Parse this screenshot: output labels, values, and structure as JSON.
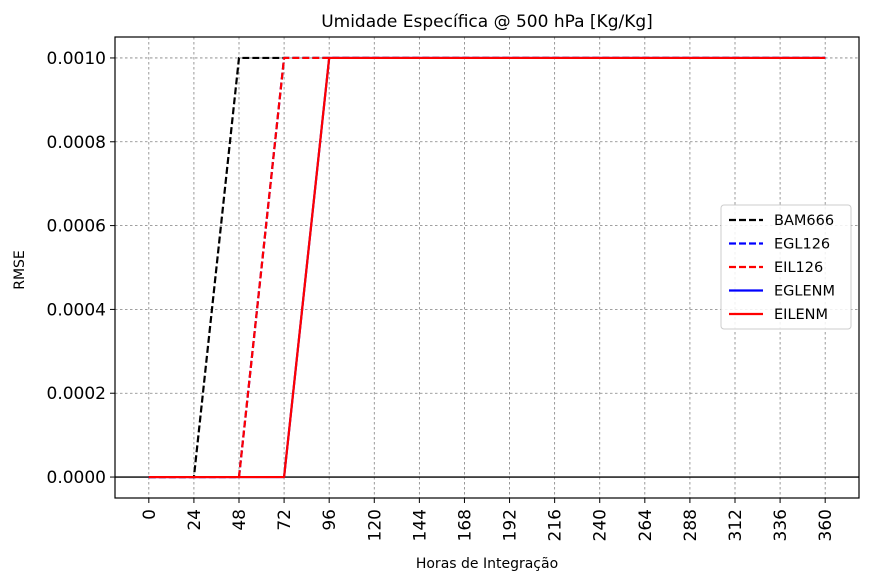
{
  "chart_data": {
    "type": "line",
    "title": "Umidade Específica @ 500 hPa [Kg/Kg]",
    "xlabel": "Horas de Integração",
    "ylabel": "RMSE",
    "xlim": [
      -18,
      378
    ],
    "ylim": [
      -5e-05,
      0.00105
    ],
    "xticks": [
      0,
      24,
      48,
      72,
      96,
      120,
      144,
      168,
      192,
      216,
      240,
      264,
      288,
      312,
      336,
      360
    ],
    "yticks": [
      0.0,
      0.0002,
      0.0004,
      0.0006,
      0.0008,
      0.001
    ],
    "ytick_labels": [
      "0.0000",
      "0.0002",
      "0.0004",
      "0.0006",
      "0.0008",
      "0.0010"
    ],
    "grid": true,
    "grid_color": "#808080",
    "zero_line": true,
    "legend_position": "center-right",
    "x": [
      0,
      24,
      48,
      72,
      96,
      120,
      144,
      168,
      192,
      216,
      240,
      264,
      288,
      312,
      336,
      360
    ],
    "series": [
      {
        "name": "BAM666",
        "color": "#000000",
        "style": "dashed",
        "values": [
          0,
          0,
          0.001,
          0.001,
          0.001,
          0.001,
          0.001,
          0.001,
          0.001,
          0.001,
          0.001,
          0.001,
          0.001,
          0.001,
          0.001,
          0.001
        ]
      },
      {
        "name": "EGL126",
        "color": "#0000ff",
        "style": "dashed",
        "values": [
          0,
          0,
          0,
          0.001,
          0.001,
          0.001,
          0.001,
          0.001,
          0.001,
          0.001,
          0.001,
          0.001,
          0.001,
          0.001,
          0.001,
          0.001
        ]
      },
      {
        "name": "EIL126",
        "color": "#ff0000",
        "style": "dashed",
        "values": [
          0,
          0,
          0,
          0.001,
          0.001,
          0.001,
          0.001,
          0.001,
          0.001,
          0.001,
          0.001,
          0.001,
          0.001,
          0.001,
          0.001,
          0.001
        ]
      },
      {
        "name": "EGLENM",
        "color": "#0000ff",
        "style": "solid",
        "values": [
          0,
          0,
          0,
          0,
          0.001,
          0.001,
          0.001,
          0.001,
          0.001,
          0.001,
          0.001,
          0.001,
          0.001,
          0.001,
          0.001,
          0.001
        ]
      },
      {
        "name": "EILENM",
        "color": "#ff0000",
        "style": "solid",
        "values": [
          0,
          0,
          0,
          0,
          0.001,
          0.001,
          0.001,
          0.001,
          0.001,
          0.001,
          0.001,
          0.001,
          0.001,
          0.001,
          0.001,
          0.001
        ]
      }
    ]
  }
}
